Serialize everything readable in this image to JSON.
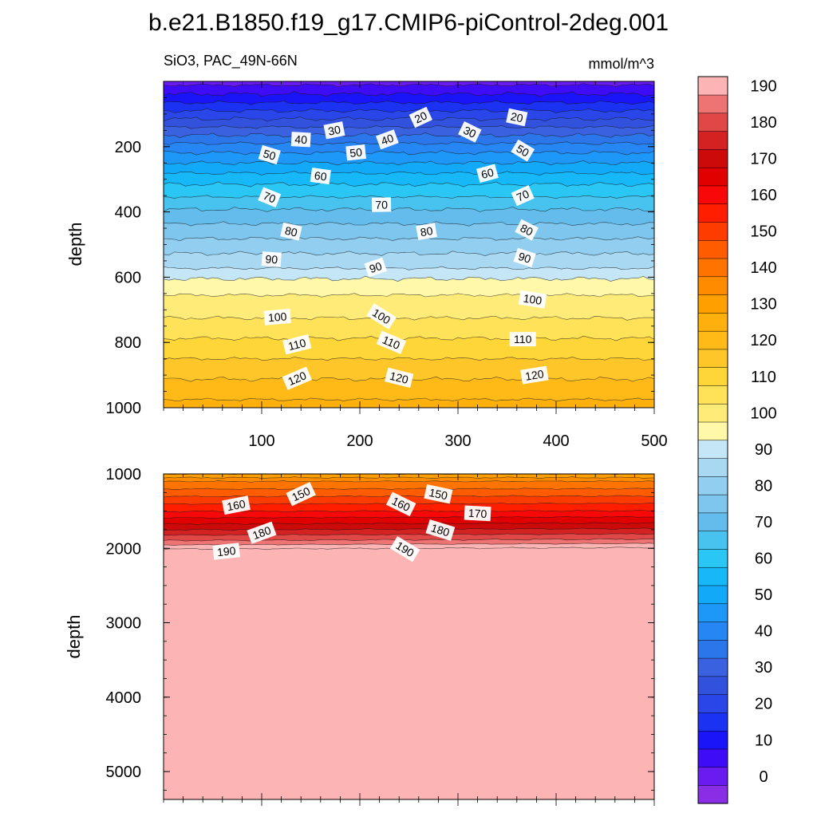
{
  "title": "b.e21.B1850.f19_g17.CMIP6-piControl-2deg.001",
  "subtitle_left": "SiO3, PAC_49N-66N",
  "subtitle_right": "mmol/m^3",
  "colorbar": {
    "levels": [
      -5,
      0,
      5,
      10,
      15,
      20,
      25,
      30,
      35,
      40,
      45,
      50,
      55,
      60,
      65,
      70,
      75,
      80,
      85,
      90,
      95,
      100,
      105,
      110,
      115,
      120,
      125,
      130,
      135,
      140,
      145,
      150,
      155,
      160,
      165,
      170,
      175,
      180,
      185,
      190,
      195,
      200
    ],
    "colors": [
      "#8a2ee6",
      "#6a1cf0",
      "#3e0cf6",
      "#1a14f8",
      "#1c32f2",
      "#2a46e8",
      "#3252de",
      "#3a62e0",
      "#2c76ec",
      "#2686f4",
      "#1e98f8",
      "#12aaf8",
      "#16b8f8",
      "#2ac6f4",
      "#48c2ee",
      "#64bcec",
      "#7ec6ee",
      "#92cef0",
      "#a8d8f2",
      "#c4e6f6",
      "#fff8a8",
      "#ffec78",
      "#ffe258",
      "#ffd638",
      "#ffc62a",
      "#ffba18",
      "#ffb00c",
      "#ffa000",
      "#ff8c00",
      "#ff7400",
      "#ff5c00",
      "#ff3c00",
      "#ff1e00",
      "#f80808",
      "#e00000",
      "#cc0a0a",
      "#d42222",
      "#e04848",
      "#ee7474",
      "#fcb4b4"
    ],
    "tick_labels": [
      "0",
      "10",
      "20",
      "30",
      "40",
      "50",
      "60",
      "70",
      "80",
      "90",
      "100",
      "110",
      "120",
      "130",
      "140",
      "150",
      "160",
      "170",
      "180",
      "190"
    ]
  },
  "chart_data": [
    {
      "type": "heatmap",
      "panel": "upper",
      "xlabel": "",
      "ylabel": "depth",
      "xlim": [
        0,
        500
      ],
      "ylim": [
        1000,
        0
      ],
      "x_ticks": [
        "100",
        "200",
        "300",
        "400",
        "500"
      ],
      "y_ticks": [
        "200",
        "400",
        "600",
        "800",
        "1000"
      ],
      "contour_interval": 5,
      "profile": {
        "depth": [
          0,
          50,
          100,
          150,
          200,
          300,
          400,
          500,
          600,
          610,
          700,
          800,
          900,
          1000
        ],
        "value": [
          3,
          12,
          22,
          32,
          42,
          58,
          71,
          82,
          93,
          97,
          103,
          111,
          119,
          127
        ]
      },
      "contour_labels": [
        {
          "text": "20",
          "x": 262,
          "depth": 110
        },
        {
          "text": "20",
          "x": 360,
          "depth": 110
        },
        {
          "text": "30",
          "x": 174,
          "depth": 150
        },
        {
          "text": "30",
          "x": 312,
          "depth": 155
        },
        {
          "text": "40",
          "x": 140,
          "depth": 178
        },
        {
          "text": "40",
          "x": 228,
          "depth": 178
        },
        {
          "text": "50",
          "x": 108,
          "depth": 225
        },
        {
          "text": "50",
          "x": 196,
          "depth": 218
        },
        {
          "text": "50",
          "x": 366,
          "depth": 212
        },
        {
          "text": "60",
          "x": 160,
          "depth": 290
        },
        {
          "text": "60",
          "x": 330,
          "depth": 282
        },
        {
          "text": "70",
          "x": 108,
          "depth": 355
        },
        {
          "text": "70",
          "x": 222,
          "depth": 378
        },
        {
          "text": "70",
          "x": 366,
          "depth": 350
        },
        {
          "text": "80",
          "x": 130,
          "depth": 460
        },
        {
          "text": "80",
          "x": 268,
          "depth": 460
        },
        {
          "text": "80",
          "x": 370,
          "depth": 455
        },
        {
          "text": "90",
          "x": 110,
          "depth": 545
        },
        {
          "text": "90",
          "x": 216,
          "depth": 570
        },
        {
          "text": "90",
          "x": 368,
          "depth": 540
        },
        {
          "text": "100",
          "x": 116,
          "depth": 722
        },
        {
          "text": "100",
          "x": 222,
          "depth": 720
        },
        {
          "text": "100",
          "x": 376,
          "depth": 668
        },
        {
          "text": "110",
          "x": 136,
          "depth": 806
        },
        {
          "text": "110",
          "x": 232,
          "depth": 800
        },
        {
          "text": "110",
          "x": 366,
          "depth": 790
        },
        {
          "text": "120",
          "x": 136,
          "depth": 910
        },
        {
          "text": "120",
          "x": 240,
          "depth": 908
        },
        {
          "text": "120",
          "x": 378,
          "depth": 900
        }
      ]
    },
    {
      "type": "heatmap",
      "panel": "lower",
      "xlabel": "",
      "ylabel": "depth",
      "xlim": [
        0,
        500
      ],
      "ylim": [
        5375,
        1000
      ],
      "y_ticks": [
        "1000",
        "2000",
        "3000",
        "4000",
        "5000"
      ],
      "contour_interval": 5,
      "profile": {
        "depth": [
          1000,
          1100,
          1300,
          1500,
          1700,
          1900,
          2000,
          5375
        ],
        "value": [
          130,
          140,
          150,
          160,
          172,
          186,
          195,
          198
        ]
      },
      "contour_labels": [
        {
          "text": "150",
          "x": 140,
          "depth": 1270
        },
        {
          "text": "150",
          "x": 280,
          "depth": 1270
        },
        {
          "text": "160",
          "x": 74,
          "depth": 1420
        },
        {
          "text": "160",
          "x": 242,
          "depth": 1405
        },
        {
          "text": "170",
          "x": 320,
          "depth": 1530
        },
        {
          "text": "180",
          "x": 100,
          "depth": 1790
        },
        {
          "text": "180",
          "x": 282,
          "depth": 1755
        },
        {
          "text": "190",
          "x": 64,
          "depth": 2040
        },
        {
          "text": "190",
          "x": 246,
          "depth": 2010
        }
      ]
    }
  ]
}
